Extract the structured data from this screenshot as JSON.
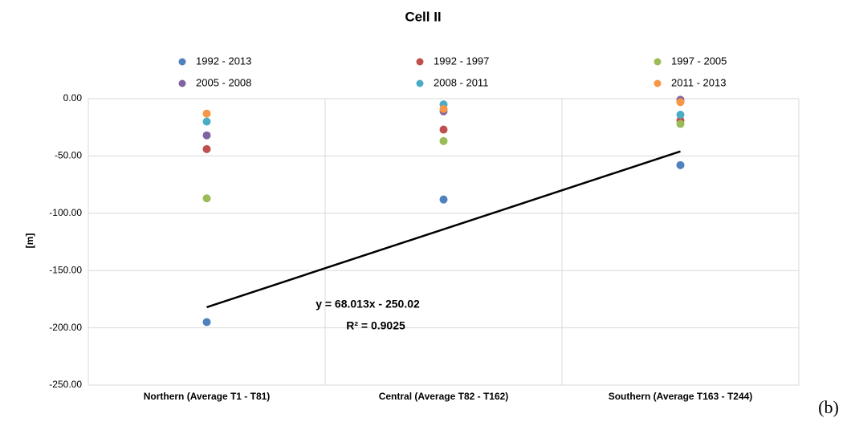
{
  "chart_data": {
    "type": "scatter",
    "title": "Cell II",
    "y_label": "[m]",
    "panel_label": "(b)",
    "categories": [
      "Northern (Average T1 - T81)",
      "Central (Average T82 - T162)",
      "Southern (Average T163 - T244)"
    ],
    "series": [
      {
        "name": "1992 - 2013",
        "color": "#4f81bd",
        "values": [
          -195,
          -88,
          -58
        ]
      },
      {
        "name": "1992 - 1997",
        "color": "#c0504d",
        "values": [
          -44,
          -27,
          -19
        ]
      },
      {
        "name": "1997 - 2005",
        "color": "#9bbb59",
        "values": [
          -87,
          -37,
          -22
        ]
      },
      {
        "name": "2005 - 2008",
        "color": "#8064a2",
        "values": [
          -32,
          -11,
          -1
        ]
      },
      {
        "name": "2008 - 2011",
        "color": "#4bacc6",
        "values": [
          -20,
          -5,
          -14
        ]
      },
      {
        "name": "2011 - 2013",
        "color": "#f79646",
        "values": [
          -13,
          -9,
          -3
        ]
      }
    ],
    "trendline": {
      "slope": 68.013,
      "intercept": -250.02,
      "equation": "y = 68.013x - 250.02",
      "r_squared": "R² = 0.9025",
      "color": "#000000"
    },
    "ylim": [
      -250,
      0
    ],
    "yticks": [
      {
        "value": 0,
        "label": "0.00"
      },
      {
        "value": -50,
        "label": "-50.00"
      },
      {
        "value": -100,
        "label": "-100.00"
      },
      {
        "value": -150,
        "label": "-150.00"
      },
      {
        "value": -200,
        "label": "-200.00"
      },
      {
        "value": -250,
        "label": "-250.00"
      }
    ],
    "grid": true,
    "legend": "top"
  }
}
